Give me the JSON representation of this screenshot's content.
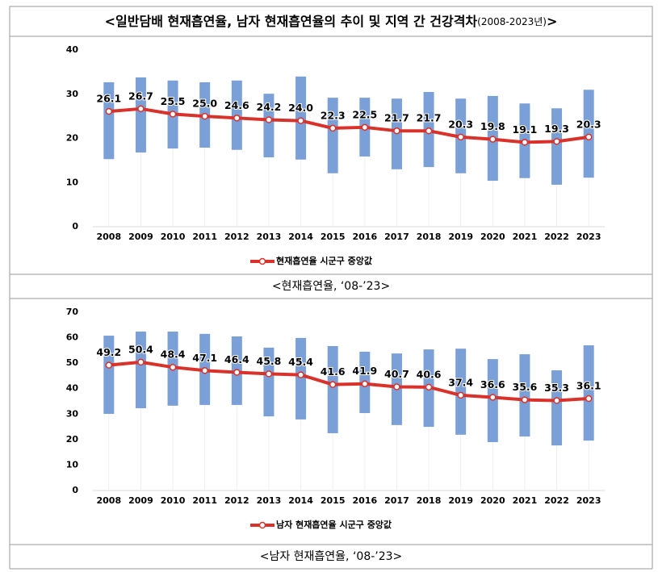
{
  "header": {
    "title": [
      "<일반담배 현재흡연율, 남자 현재흡연율의 추이 및 지역 간 건강격차",
      "(2008-2023년)",
      ">"
    ]
  },
  "chart_data": [
    {
      "type": "range-line",
      "categories": [
        "2008",
        "2009",
        "2010",
        "2011",
        "2012",
        "2013",
        "2014",
        "2015",
        "2016",
        "2017",
        "2018",
        "2019",
        "2020",
        "2021",
        "2022",
        "2023"
      ],
      "ylim": [
        0,
        40
      ],
      "yticks": [
        0,
        10,
        20,
        30,
        40
      ],
      "ranges": {
        "color": "#7b9fd7",
        "low": [
          15.3,
          16.8,
          17.7,
          17.9,
          17.4,
          15.7,
          15.2,
          12.1,
          15.9,
          13.0,
          13.5,
          12.1,
          10.4,
          11.0,
          9.5,
          11.1
        ],
        "high": [
          32.7,
          33.8,
          33.1,
          32.7,
          33.1,
          30.1,
          34.0,
          29.2,
          29.2,
          29.0,
          30.5,
          29.0,
          29.6,
          27.9,
          26.8,
          31.0
        ]
      },
      "series": [
        {
          "name": "현재흡연율 시군구 중앙값",
          "color": "#d9322b",
          "values": [
            26.1,
            26.7,
            25.5,
            25.0,
            24.6,
            24.2,
            24.0,
            22.3,
            22.5,
            21.7,
            21.7,
            20.3,
            19.8,
            19.1,
            19.3,
            20.3
          ],
          "value_labels": [
            "26.1",
            "26.7",
            "25.5",
            "25.0",
            "24.6",
            "24.2",
            "24.0",
            "22.3",
            "22.5",
            "21.7",
            "21.7",
            "20.3",
            "19.8",
            "19.1",
            "19.3",
            "20.3"
          ]
        }
      ],
      "caption": "<현재흡연율, ‘08-’23>"
    },
    {
      "type": "range-line",
      "categories": [
        "2008",
        "2009",
        "2010",
        "2011",
        "2012",
        "2013",
        "2014",
        "2015",
        "2016",
        "2017",
        "2018",
        "2019",
        "2020",
        "2021",
        "2022",
        "2023"
      ],
      "ylim": [
        0,
        70
      ],
      "yticks": [
        0,
        10,
        20,
        30,
        40,
        50,
        60,
        70
      ],
      "ranges": {
        "color": "#7b9fd7",
        "low": [
          30.1,
          32.3,
          33.3,
          33.6,
          33.6,
          29.1,
          27.9,
          22.5,
          30.4,
          25.7,
          25.0,
          21.9,
          19.0,
          21.2,
          17.7,
          19.6
        ],
        "high": [
          60.8,
          62.4,
          62.4,
          61.5,
          60.5,
          56.1,
          59.9,
          56.7,
          54.5,
          53.8,
          55.4,
          55.7,
          51.6,
          53.5,
          47.2,
          57.0
        ]
      },
      "series": [
        {
          "name": "남자 현재흡연율 시군구 중앙값",
          "color": "#d9322b",
          "values": [
            49.2,
            50.4,
            48.4,
            47.1,
            46.4,
            45.8,
            45.4,
            41.6,
            41.9,
            40.7,
            40.6,
            37.4,
            36.6,
            35.6,
            35.3,
            36.1
          ],
          "value_labels": [
            "49.2",
            "50.4",
            "48.4",
            "47.1",
            "46.4",
            "45.8",
            "45.4",
            "41.6",
            "41.9",
            "40.7",
            "40.6",
            "37.4",
            "36.6",
            "35.6",
            "35.3",
            "36.1"
          ]
        }
      ],
      "caption": "<남자 현재흡연율, ‘08-’23>"
    }
  ]
}
